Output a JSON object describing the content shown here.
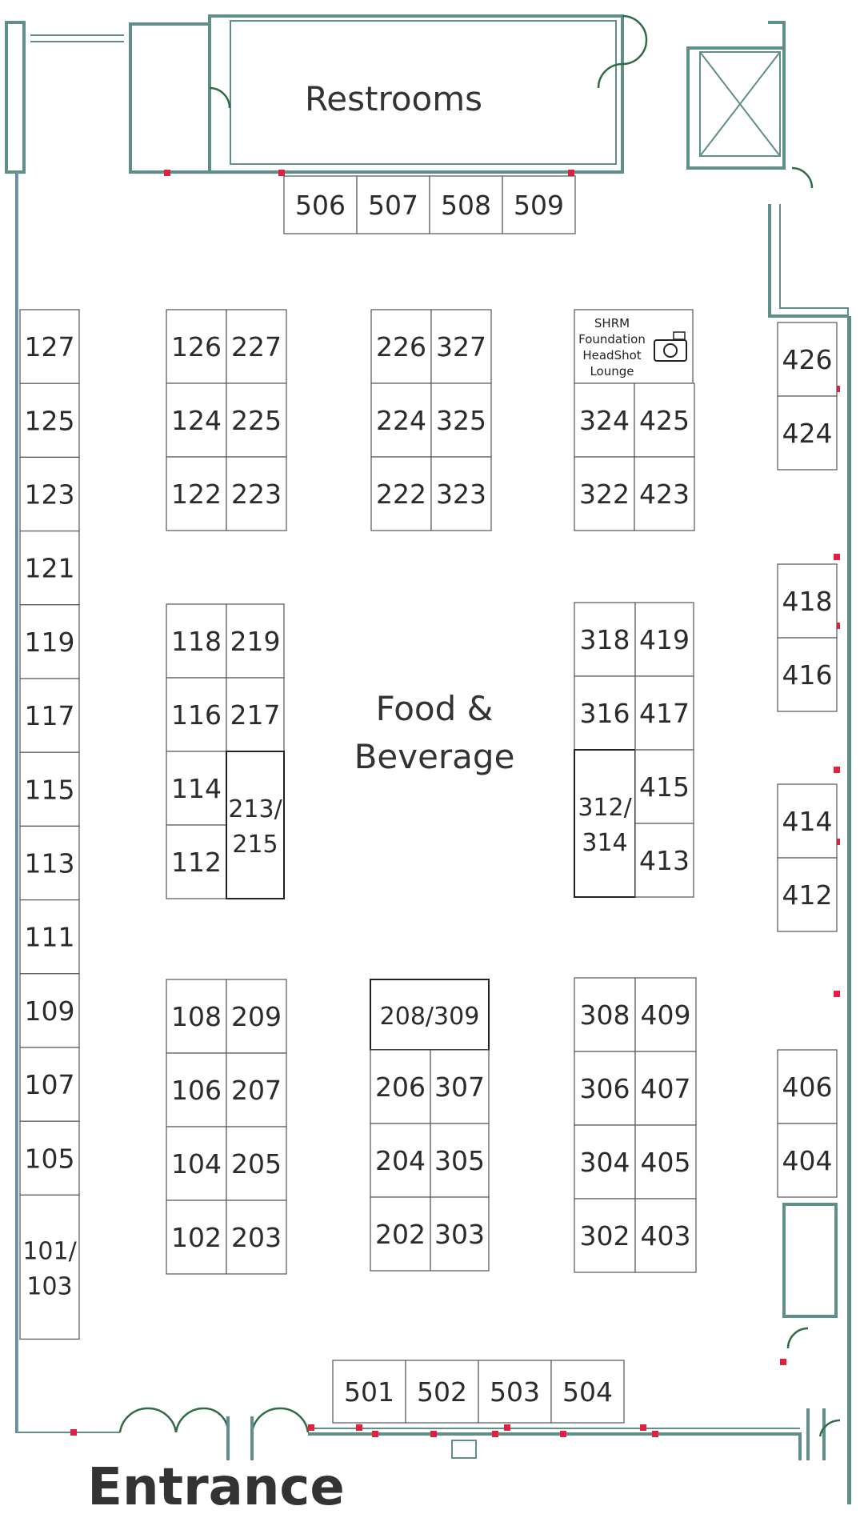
{
  "areas": {
    "restrooms": "Restrooms",
    "food_line1": "Food &",
    "food_line2": "Beverage",
    "entrance": "Entrance",
    "lounge": [
      "SHRM",
      "Foundation",
      "HeadShot",
      "Lounge"
    ]
  },
  "icons": {
    "lounge": "camera-icon",
    "stair": "elevator-shaft-icon"
  },
  "colors": {
    "wall": "#5f8f88",
    "door": "#2f6b45",
    "marker": "#e02040"
  },
  "booth_columns": [
    {
      "id": "wall-west",
      "x": 22,
      "w": 73,
      "labels": [
        "127",
        "125",
        "123",
        "121",
        "119",
        "117",
        "115",
        "113",
        "111",
        "109",
        "107",
        "105",
        "101/\n103"
      ]
    },
    {
      "id": "block-a",
      "left": [
        "126",
        "124",
        "122"
      ],
      "right": [
        "227",
        "225",
        "223"
      ]
    },
    {
      "id": "block-b",
      "left": [
        "226",
        "224",
        "222"
      ],
      "right": [
        "327",
        "325",
        "323"
      ]
    },
    {
      "id": "block-c",
      "left": [
        "324",
        "322"
      ],
      "right": [
        "425",
        "423"
      ]
    },
    {
      "id": "block-d",
      "left": [
        "118",
        "116",
        "114",
        "112"
      ],
      "right": [
        "219",
        "217",
        "213/\n215"
      ]
    },
    {
      "id": "block-e",
      "left": [
        "318",
        "316",
        "312/\n314"
      ],
      "right": [
        "419",
        "417",
        "415",
        "413"
      ]
    },
    {
      "id": "block-f",
      "left": [
        "108",
        "106",
        "104",
        "102"
      ],
      "right": [
        "209",
        "207",
        "205",
        "203"
      ]
    },
    {
      "id": "block-g",
      "top": "208/309",
      "left": [
        "206",
        "204",
        "202"
      ],
      "right": [
        "307",
        "305",
        "303"
      ]
    },
    {
      "id": "block-h",
      "left": [
        "308",
        "306",
        "304",
        "302"
      ],
      "right": [
        "409",
        "407",
        "405",
        "403"
      ]
    },
    {
      "id": "east",
      "labels": [
        "426",
        "424",
        "418",
        "416",
        "414",
        "412",
        "406",
        "404"
      ]
    },
    {
      "id": "north",
      "labels": [
        "506",
        "507",
        "508",
        "509"
      ]
    },
    {
      "id": "south",
      "labels": [
        "501",
        "502",
        "503",
        "504"
      ]
    }
  ]
}
